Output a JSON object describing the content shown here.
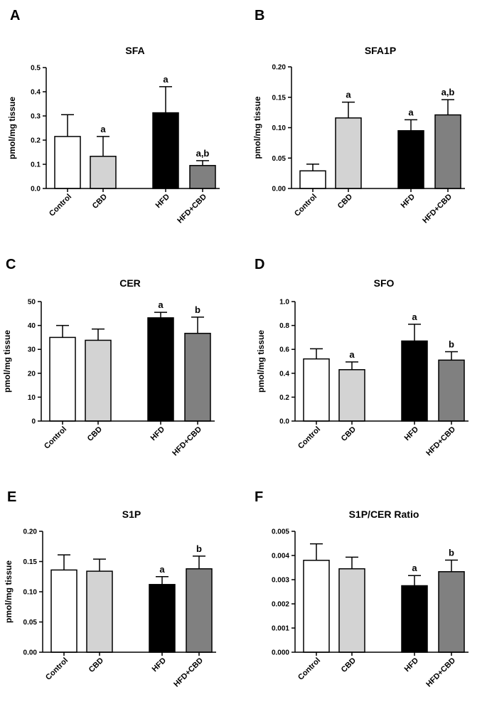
{
  "figure": {
    "type": "bar_chart_grid",
    "columns": 2,
    "rows": 3
  },
  "chart_data": [
    {
      "panel": "A",
      "type": "bar",
      "title": "SFA",
      "xlabel": "",
      "ylabel": "pmol/mg tissue",
      "categories": [
        "Control",
        "CBD",
        "HFD",
        "HFD+CBD"
      ],
      "values": [
        0.215,
        0.133,
        0.313,
        0.095
      ],
      "errors": [
        0.09,
        0.082,
        0.108,
        0.02
      ],
      "significance": [
        "",
        "a",
        "a",
        "a,b"
      ],
      "ylim": [
        0,
        0.5
      ],
      "yticks": [
        0.0,
        0.1,
        0.2,
        0.3,
        0.4,
        0.5
      ],
      "ytick_labels": [
        "0.0",
        "0.1",
        "0.2",
        "0.3",
        "0.4",
        "0.5"
      ],
      "bar_colors": [
        "#ffffff",
        "#d3d3d3",
        "#000000",
        "#808080"
      ]
    },
    {
      "panel": "B",
      "type": "bar",
      "title": "SFA1P",
      "xlabel": "",
      "ylabel": "pmol/mg tissue",
      "categories": [
        "Control",
        "CBD",
        "HFD",
        "HFD+CBD"
      ],
      "values": [
        0.029,
        0.116,
        0.095,
        0.121
      ],
      "errors": [
        0.011,
        0.026,
        0.018,
        0.025
      ],
      "significance": [
        "",
        "a",
        "a",
        "a,b"
      ],
      "ylim": [
        0,
        0.2
      ],
      "yticks": [
        0.0,
        0.05,
        0.1,
        0.15,
        0.2
      ],
      "ytick_labels": [
        "0.00",
        "0.05",
        "0.10",
        "0.15",
        "0.20"
      ],
      "bar_colors": [
        "#ffffff",
        "#d3d3d3",
        "#000000",
        "#808080"
      ]
    },
    {
      "panel": "C",
      "type": "bar",
      "title": "CER",
      "xlabel": "",
      "ylabel": "pmol/mg tissue",
      "categories": [
        "Control",
        "CBD",
        "HFD",
        "HFD+CBD"
      ],
      "values": [
        35.0,
        33.8,
        43.2,
        36.7
      ],
      "errors": [
        5.0,
        4.7,
        2.3,
        6.8
      ],
      "significance": [
        "",
        "",
        "a",
        "b"
      ],
      "ylim": [
        0,
        50
      ],
      "yticks": [
        0,
        10,
        20,
        30,
        40,
        50
      ],
      "ytick_labels": [
        "0",
        "10",
        "20",
        "30",
        "40",
        "50"
      ],
      "bar_colors": [
        "#ffffff",
        "#d3d3d3",
        "#000000",
        "#808080"
      ]
    },
    {
      "panel": "D",
      "type": "bar",
      "title": "SFO",
      "xlabel": "",
      "ylabel": "pmol/mg tissue",
      "categories": [
        "Control",
        "CBD",
        "HFD",
        "HFD+CBD"
      ],
      "values": [
        0.52,
        0.43,
        0.67,
        0.51
      ],
      "errors": [
        0.085,
        0.065,
        0.14,
        0.07
      ],
      "significance": [
        "",
        "a",
        "a",
        "b"
      ],
      "ylim": [
        0,
        1.0
      ],
      "yticks": [
        0.0,
        0.2,
        0.4,
        0.6,
        0.8,
        1.0
      ],
      "ytick_labels": [
        "0.0",
        "0.2",
        "0.4",
        "0.6",
        "0.8",
        "1.0"
      ],
      "bar_colors": [
        "#ffffff",
        "#d3d3d3",
        "#000000",
        "#808080"
      ]
    },
    {
      "panel": "E",
      "type": "bar",
      "title": "S1P",
      "xlabel": "",
      "ylabel": "pmol/mg tissue",
      "categories": [
        "Control",
        "CBD",
        "HFD",
        "HFD+CBD"
      ],
      "values": [
        0.136,
        0.134,
        0.112,
        0.138
      ],
      "errors": [
        0.025,
        0.02,
        0.013,
        0.021
      ],
      "significance": [
        "",
        "",
        "a",
        "b"
      ],
      "ylim": [
        0,
        0.2
      ],
      "yticks": [
        0.0,
        0.05,
        0.1,
        0.15,
        0.2
      ],
      "ytick_labels": [
        "0.00",
        "0.05",
        "0.10",
        "0.15",
        "0.20"
      ],
      "bar_colors": [
        "#ffffff",
        "#d3d3d3",
        "#000000",
        "#808080"
      ]
    },
    {
      "panel": "F",
      "type": "bar",
      "title": "S1P/CER Ratio",
      "xlabel": "",
      "ylabel": "",
      "categories": [
        "Control",
        "CBD",
        "HFD",
        "HFD+CBD"
      ],
      "values": [
        0.0038,
        0.00345,
        0.00275,
        0.00333
      ],
      "errors": [
        0.00068,
        0.00048,
        0.00042,
        0.00048
      ],
      "significance": [
        "",
        "",
        "a",
        "b"
      ],
      "ylim": [
        0,
        0.005
      ],
      "yticks": [
        0.0,
        0.001,
        0.002,
        0.003,
        0.004,
        0.005
      ],
      "ytick_labels": [
        "0.000",
        "0.001",
        "0.002",
        "0.003",
        "0.004",
        "0.005"
      ],
      "bar_colors": [
        "#ffffff",
        "#d3d3d3",
        "#000000",
        "#808080"
      ]
    }
  ]
}
